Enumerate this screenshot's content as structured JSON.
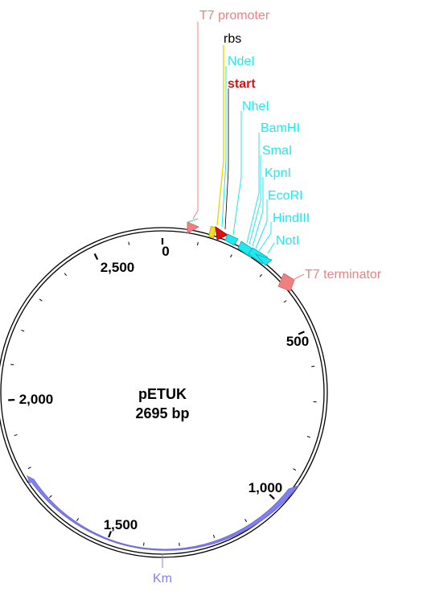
{
  "plasmid": {
    "name": "pETUK",
    "size_label": "2695 bp",
    "length_bp": 2695
  },
  "colors": {
    "promoter": "#f08080",
    "rbs": "#f0e020",
    "start": "#e01010",
    "site": "#20e8f0",
    "marker": "#8080ee",
    "backbone": "#000000"
  },
  "ticks": {
    "major": [
      {
        "bp": 0,
        "label": "0"
      },
      {
        "bp": 500,
        "label": "500"
      },
      {
        "bp": 1000,
        "label": "1,000"
      },
      {
        "bp": 1500,
        "label": "1,500"
      },
      {
        "bp": 2000,
        "label": "2,000"
      },
      {
        "bp": 2500,
        "label": "2,500"
      }
    ],
    "minor_step_bp": 100
  },
  "labels": [
    {
      "id": "t7-promoter",
      "text": "T7 promoter",
      "kind": "promoter"
    },
    {
      "id": "rbs",
      "text": "rbs",
      "kind": "rbs"
    },
    {
      "id": "ndei",
      "text": "NdeI",
      "kind": "site"
    },
    {
      "id": "start",
      "text": "start",
      "kind": "start"
    },
    {
      "id": "nhei",
      "text": "NheI",
      "kind": "site"
    },
    {
      "id": "bamhi",
      "text": "BamHI",
      "kind": "site"
    },
    {
      "id": "smai",
      "text": "SmaI",
      "kind": "site"
    },
    {
      "id": "kpni",
      "text": "KpnI",
      "kind": "site"
    },
    {
      "id": "ecori",
      "text": "EcoRI",
      "kind": "site"
    },
    {
      "id": "hindiii",
      "text": "HindIII",
      "kind": "site"
    },
    {
      "id": "noti",
      "text": "NotI",
      "kind": "site"
    },
    {
      "id": "t7-terminator",
      "text": "T7 terminator",
      "kind": "promoter"
    },
    {
      "id": "km",
      "text": "Km",
      "kind": "marker"
    }
  ]
}
